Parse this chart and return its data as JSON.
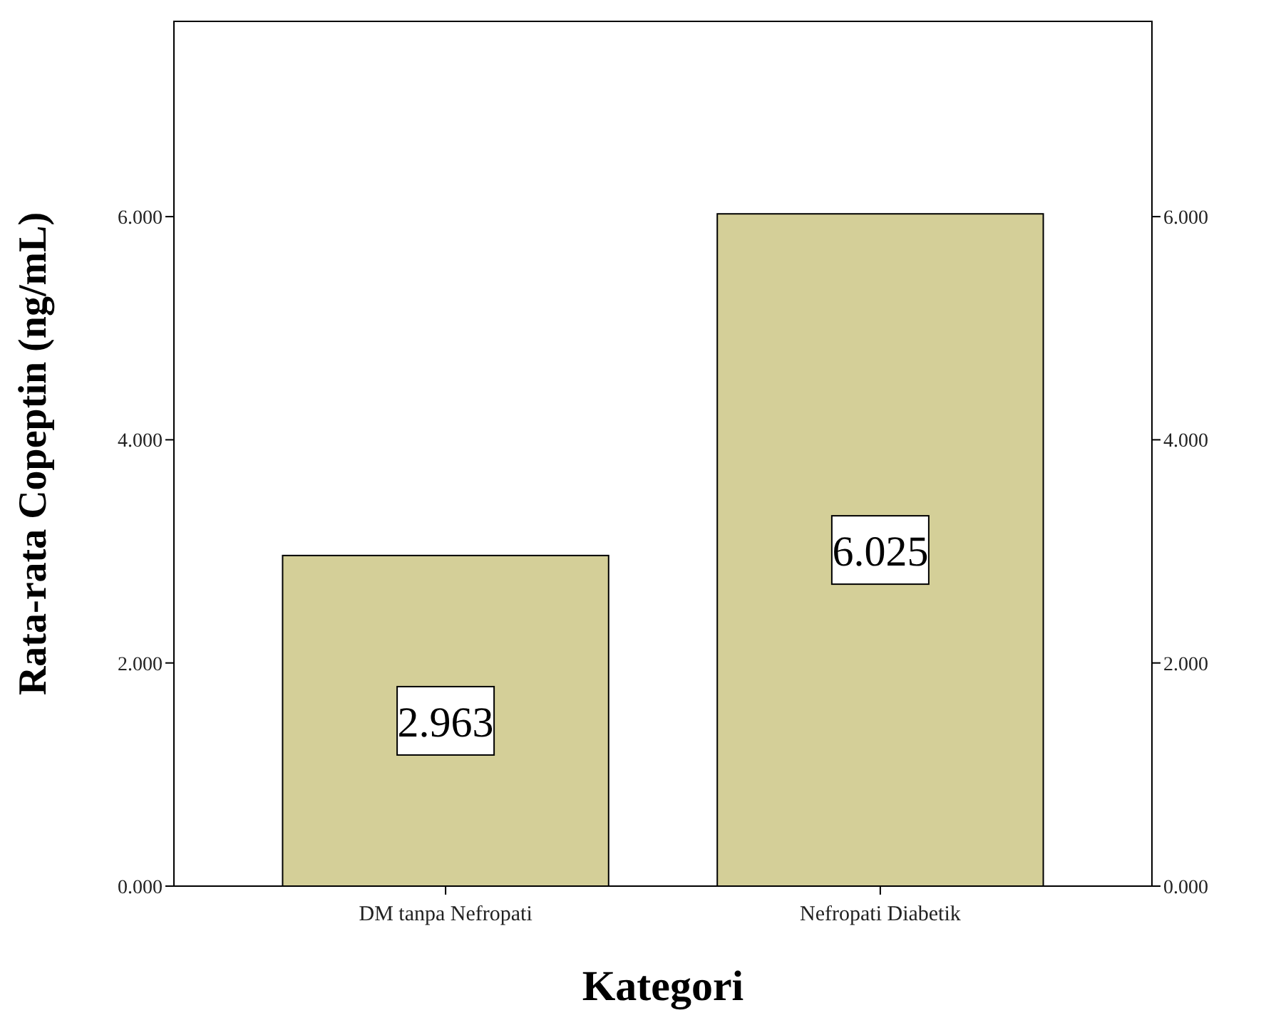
{
  "chart_data": {
    "type": "bar",
    "xlabel": "Kategori",
    "ylabel": "Rata-rata Copeptin (ng/mL)",
    "categories": [
      "DM tanpa Nefropati",
      "Nefropati Diabetik"
    ],
    "values": [
      2.963,
      6.025
    ],
    "color": "#d4cf98",
    "value_labels": [
      "2.963",
      "6.025"
    ],
    "ylim": [
      0,
      7.75
    ],
    "yticks": [
      {
        "value": 0,
        "label": "0.000"
      },
      {
        "value": 2,
        "label": "2.000"
      },
      {
        "value": 4,
        "label": "4.000"
      },
      {
        "value": 6,
        "label": "6.000"
      }
    ],
    "y2lim": [
      0,
      7.75
    ],
    "y2ticks": [
      {
        "value": 0,
        "label": "0.000"
      },
      {
        "value": 2,
        "label": "2.000"
      },
      {
        "value": 4,
        "label": "4.000"
      },
      {
        "value": 6,
        "label": "6.000"
      }
    ],
    "grid": false
  }
}
